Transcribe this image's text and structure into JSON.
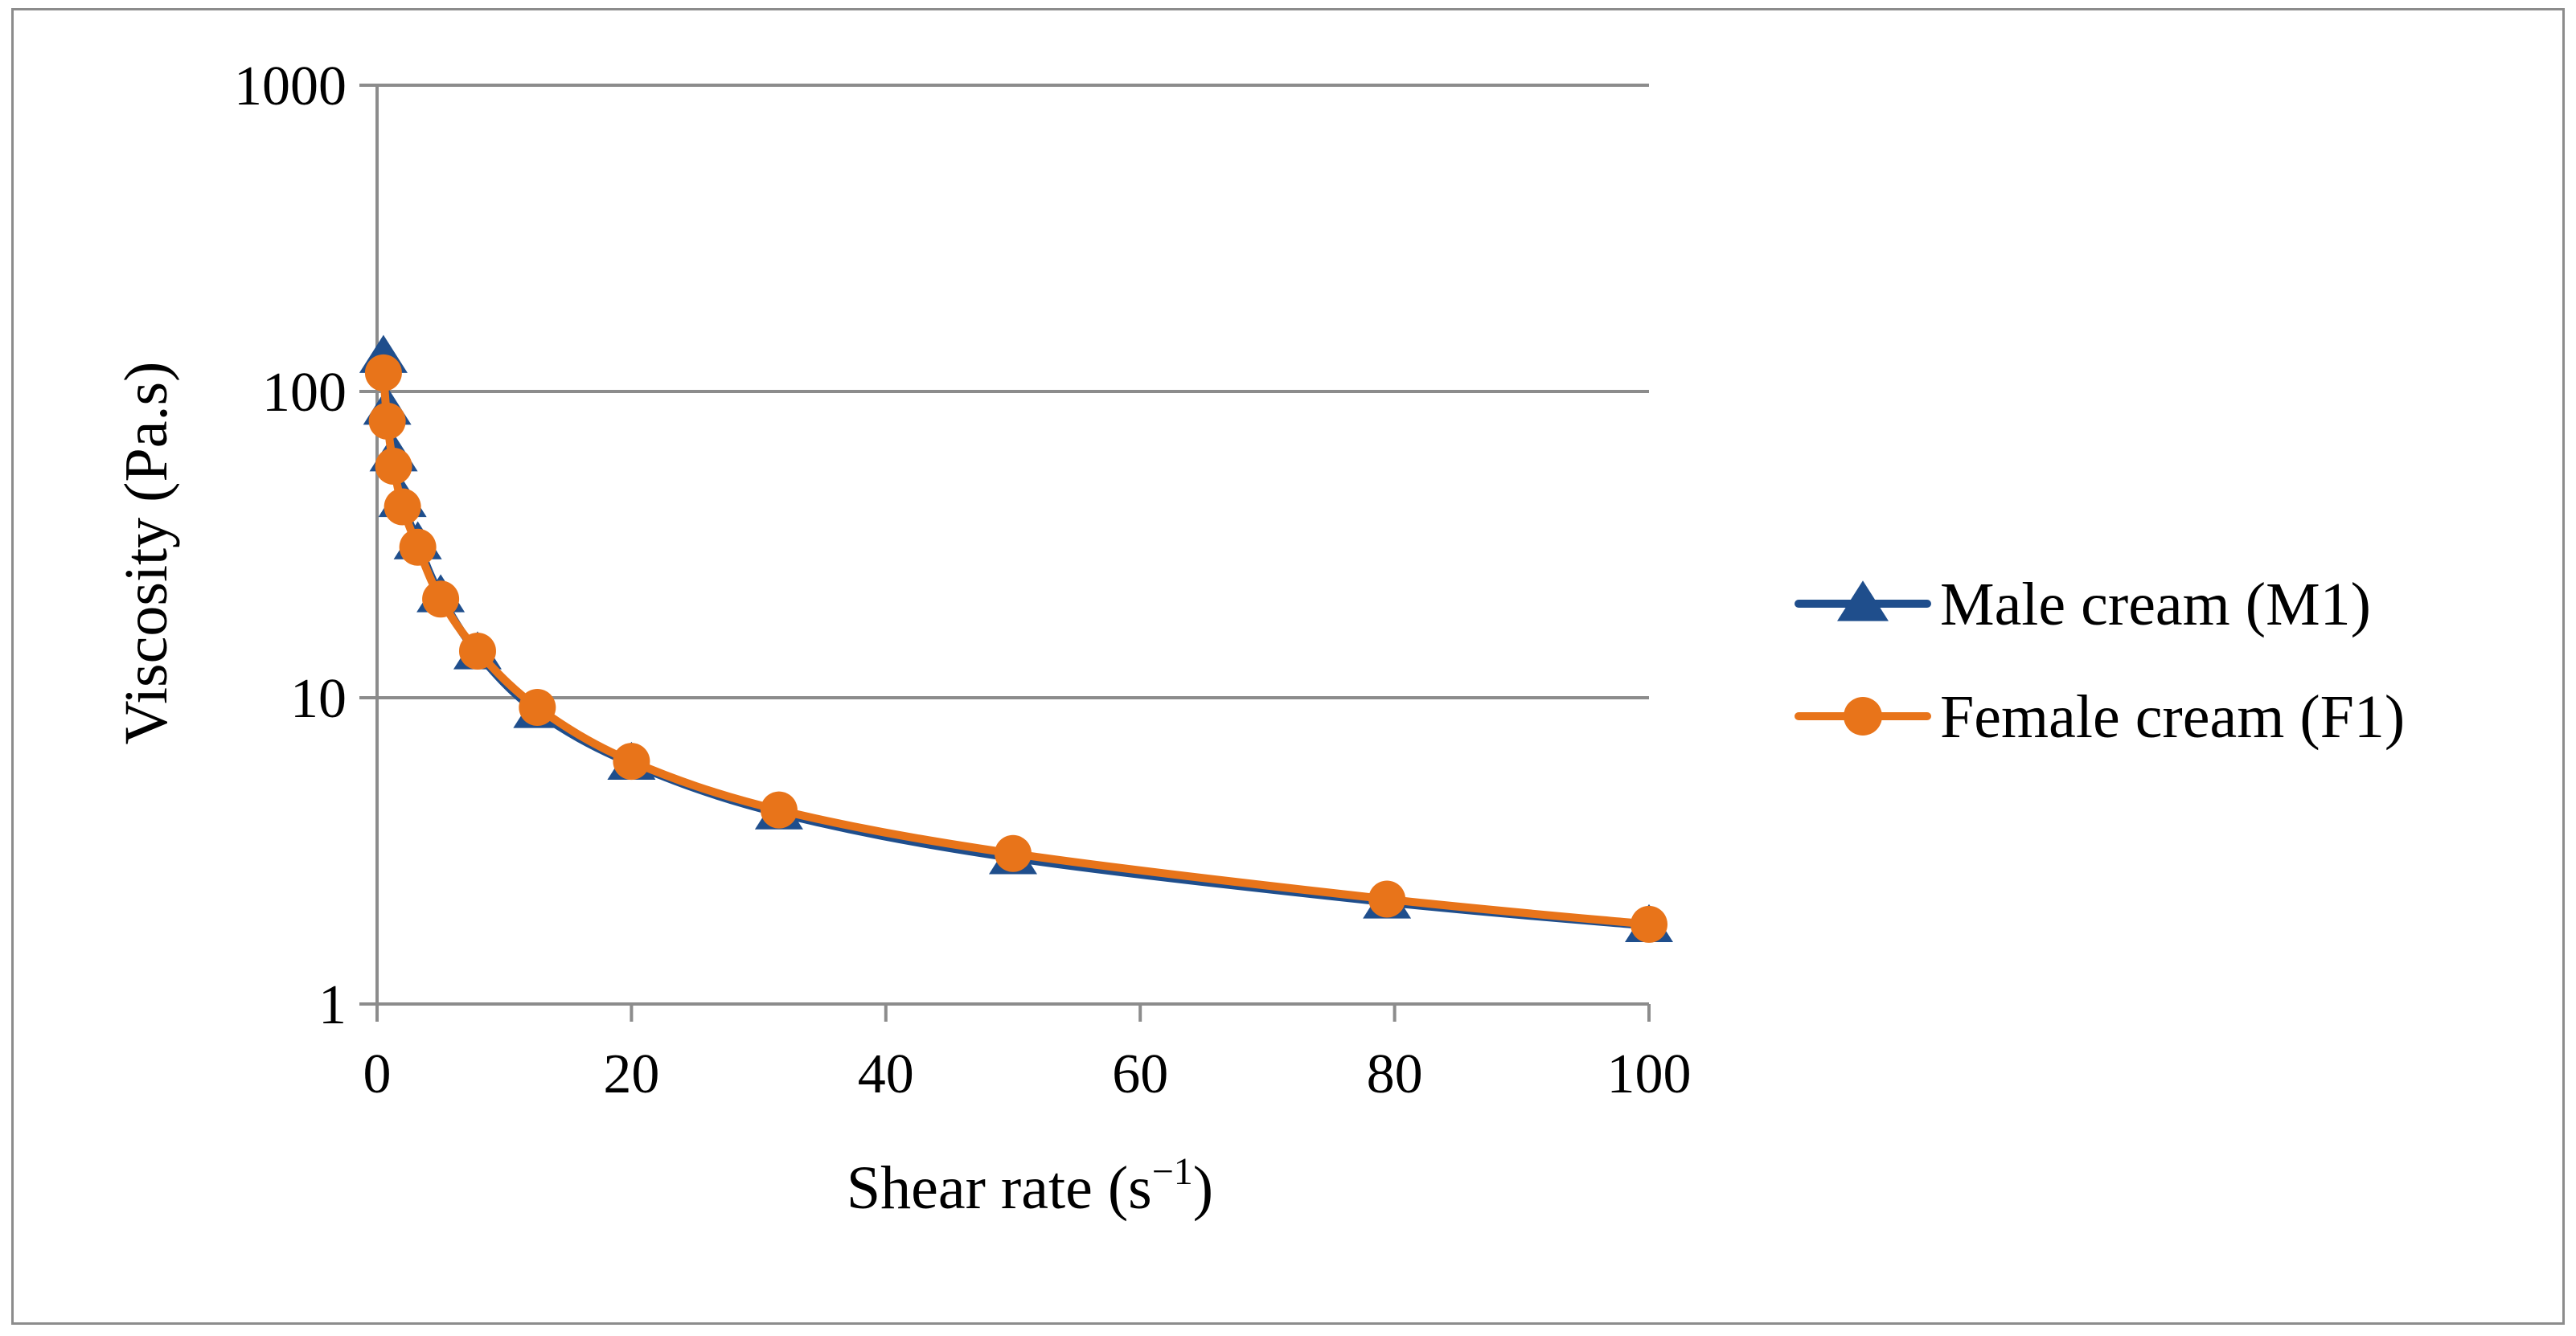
{
  "chart_data": {
    "type": "line",
    "title": "",
    "xlabel": "Shear rate (s",
    "xlabel_sup": "−1",
    "xlabel_close": ")",
    "ylabel": "Viscosity (Pa.s)",
    "xlim": [
      0,
      100
    ],
    "ylim": [
      1,
      1000
    ],
    "yscale": "log",
    "x_ticks": [
      0,
      20,
      40,
      60,
      80,
      100
    ],
    "x_tick_labels": [
      "0",
      "20",
      "40",
      "60",
      "80",
      "100"
    ],
    "y_ticks": [
      1,
      10,
      100,
      1000
    ],
    "y_tick_labels": [
      "1",
      "10",
      "100",
      "1000"
    ],
    "grid": "horizontal",
    "legend_position": "right",
    "series": [
      {
        "name": "Male cream (M1)",
        "color": "#1f4e8c",
        "marker": "triangle",
        "x": [
          0.5,
          0.8,
          1.3,
          2.0,
          3.2,
          5.0,
          7.9,
          12.6,
          20.0,
          31.6,
          50.0,
          79.4,
          100.0
        ],
        "y": [
          130,
          88,
          62,
          44,
          32,
          21.5,
          14,
          9.0,
          6.1,
          4.2,
          3.0,
          2.15,
          1.8
        ]
      },
      {
        "name": "Female cream (F1)",
        "color": "#e8741a",
        "marker": "circle",
        "x": [
          0.5,
          0.8,
          1.3,
          2.0,
          3.2,
          5.0,
          7.9,
          12.6,
          20.0,
          31.6,
          50.0,
          79.4,
          100.0
        ],
        "y": [
          115,
          80,
          57,
          42,
          31,
          21,
          14.2,
          9.3,
          6.2,
          4.3,
          3.1,
          2.2,
          1.82
        ]
      }
    ]
  }
}
